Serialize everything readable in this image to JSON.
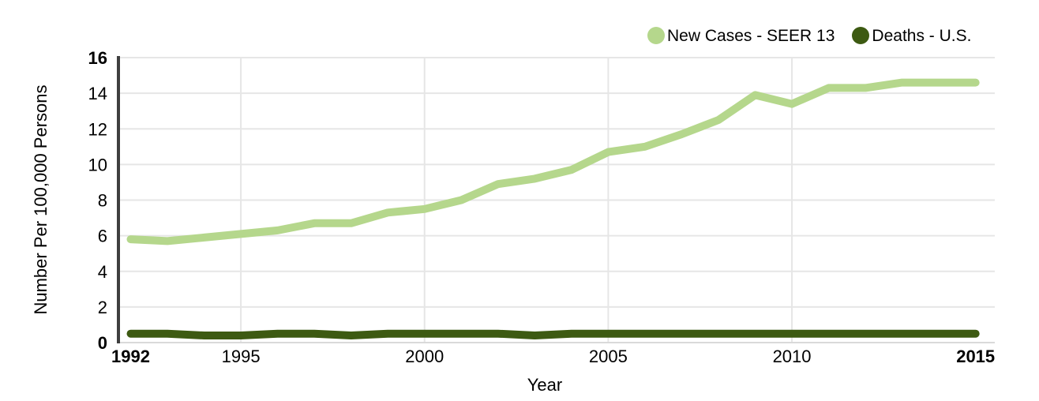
{
  "chart_data": {
    "type": "line",
    "title": "",
    "xlabel": "Year",
    "ylabel": "Number Per 100,000 Persons",
    "x": [
      1992,
      1993,
      1994,
      1995,
      1996,
      1997,
      1998,
      1999,
      2000,
      2001,
      2002,
      2003,
      2004,
      2005,
      2006,
      2007,
      2008,
      2009,
      2010,
      2011,
      2012,
      2013,
      2014,
      2015
    ],
    "series": [
      {
        "name": "New Cases - SEER 13",
        "color": "#b5d78c",
        "values": [
          5.8,
          5.7,
          5.9,
          6.1,
          6.3,
          6.7,
          6.7,
          7.3,
          7.5,
          8.0,
          8.9,
          9.2,
          9.7,
          10.7,
          11.0,
          11.7,
          12.5,
          13.9,
          13.4,
          14.3,
          14.3,
          14.6,
          14.6,
          14.6
        ]
      },
      {
        "name": "Deaths - U.S.",
        "color": "#3d5a12",
        "values": [
          0.5,
          0.5,
          0.4,
          0.4,
          0.5,
          0.5,
          0.4,
          0.5,
          0.5,
          0.5,
          0.5,
          0.4,
          0.5,
          0.5,
          0.5,
          0.5,
          0.5,
          0.5,
          0.5,
          0.5,
          0.5,
          0.5,
          0.5,
          0.5
        ]
      }
    ],
    "ylim": [
      0,
      16
    ],
    "y_ticks": [
      0,
      2,
      4,
      6,
      8,
      10,
      12,
      14,
      16
    ],
    "bold_y_ticks": [
      0,
      16
    ],
    "x_ticks": [
      1992,
      1995,
      2000,
      2005,
      2010,
      2015
    ],
    "bold_x_ticks": [
      1992,
      2015
    ],
    "x_gridlines": [
      1995,
      2000,
      2005,
      2010
    ],
    "grid": "on",
    "legend_position": "top-right",
    "colors": {
      "grid": "#e6e6e6",
      "baseline": "#d9d9d9",
      "axis": "#3f3f3f",
      "text": "#000000"
    }
  }
}
